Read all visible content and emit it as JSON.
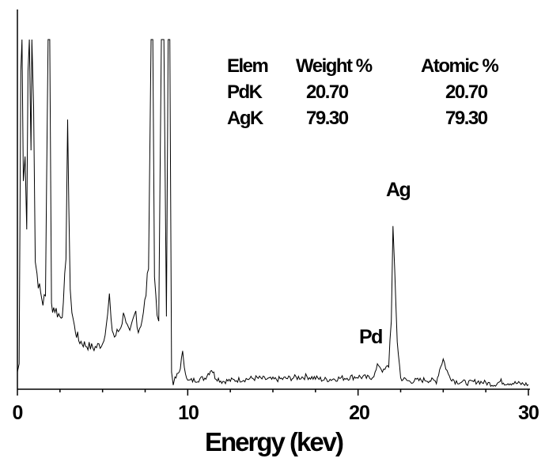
{
  "chart_data": {
    "type": "line",
    "xlabel": "Energy (kev)",
    "ylabel": "",
    "xlim": [
      0,
      30
    ],
    "x_ticks": [
      "0",
      "10",
      "20",
      "30"
    ],
    "grid": false,
    "legend": "none",
    "line_color": "#000000",
    "series": [
      {
        "x": [
          0,
          0.1,
          0.2,
          0.27,
          0.35,
          0.45,
          0.55,
          0.62,
          0.7,
          0.8,
          0.85,
          0.95,
          1.05,
          1.15,
          1.3,
          1.5,
          1.65,
          1.8,
          1.9,
          2.0,
          2.2,
          2.5,
          2.7,
          2.85,
          2.95,
          3.02,
          3.1,
          3.2,
          3.35,
          3.6,
          4.0,
          4.5,
          5.0,
          5.3,
          5.4,
          5.5,
          5.7,
          6.0,
          6.3,
          6.45,
          6.6,
          6.8,
          6.95,
          7.1,
          7.4,
          7.7,
          7.85,
          7.95,
          8.05,
          8.2,
          8.3,
          8.45,
          8.6,
          8.75,
          8.85,
          8.95,
          9.05,
          9.15,
          9.25,
          9.5,
          9.7,
          9.8,
          10.0,
          10.5,
          11.0,
          11.4,
          11.6,
          12.0,
          13.0,
          14.0,
          15.0,
          16.0,
          17.0,
          18.0,
          19.0,
          20.0,
          20.7,
          21.0,
          21.2,
          21.5,
          21.8,
          21.95,
          22.05,
          22.15,
          22.3,
          22.5,
          23.0,
          24.0,
          24.6,
          24.85,
          25.0,
          25.3,
          25.7,
          26.5,
          27.0,
          28.0,
          28.4,
          28.6,
          29.0,
          30.0
        ],
        "y": [
          10,
          15,
          200,
          220,
          130,
          150,
          100,
          200,
          220,
          150,
          220,
          180,
          80,
          72,
          62,
          54,
          58,
          220,
          220,
          52,
          50,
          45,
          50,
          85,
          170,
          110,
          65,
          48,
          38,
          30,
          27,
          25,
          28,
          45,
          58,
          40,
          32,
          37,
          48,
          38,
          33,
          42,
          48,
          36,
          46,
          75,
          220,
          220,
          75,
          45,
          42,
          220,
          220,
          45,
          220,
          220,
          10,
          3,
          5,
          10,
          21,
          14,
          4,
          5,
          6,
          12,
          7,
          4,
          5,
          6,
          5,
          6,
          7,
          5,
          6,
          7,
          6,
          9,
          15,
          10,
          14,
          45,
          100,
          70,
          30,
          6,
          4,
          5,
          4,
          14,
          18,
          8,
          4,
          3,
          4,
          2,
          4,
          3,
          3,
          2
        ]
      }
    ],
    "annotations": [
      {
        "text": "Pd",
        "x": 21.1
      },
      {
        "text": "Ag",
        "x": 22.05
      }
    ],
    "table": {
      "headers": [
        "Elem",
        "Weight %",
        "Atomic %"
      ],
      "rows": [
        [
          "PdK",
          "20.70",
          "20.70"
        ],
        [
          "AgK",
          "79.30",
          "79.30"
        ]
      ]
    }
  }
}
